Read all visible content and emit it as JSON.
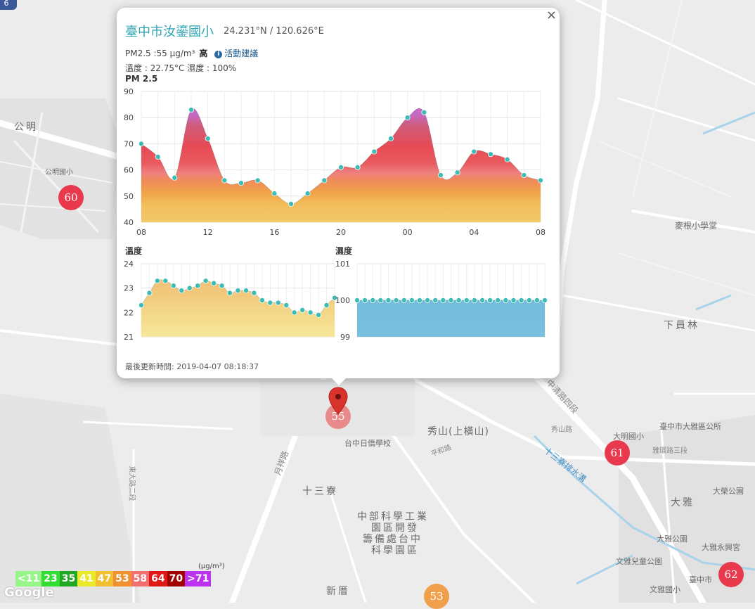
{
  "popup": {
    "station_name": "臺中市汝鎏國小",
    "coordinates": "24.231°N / 120.626°E",
    "pm25_text": "PM2.5 :55 μg/m³",
    "level": "高",
    "advice_link": "活動建議",
    "weather_text": "溫度 : 22.75°C  濕度 : 100%",
    "close_label": "×",
    "updated_text": "最後更新時間: 2019-04-07 08:18:37"
  },
  "chart_data": [
    {
      "type": "area",
      "title": "PM 2.5",
      "x": [
        "08",
        "09",
        "10",
        "11",
        "12",
        "13",
        "14",
        "15",
        "16",
        "17",
        "18",
        "19",
        "20",
        "21",
        "22",
        "23",
        "00",
        "01",
        "02",
        "03",
        "04",
        "05",
        "06",
        "07",
        "08"
      ],
      "xticks": [
        "08",
        "12",
        "16",
        "20",
        "00",
        "04",
        "08"
      ],
      "values": [
        70,
        65,
        57,
        83,
        72,
        56,
        55,
        56,
        51,
        47,
        51,
        56,
        61,
        61,
        67,
        72,
        80,
        82,
        58,
        59,
        67,
        66,
        64,
        58,
        56
      ],
      "ylim": [
        40,
        90
      ],
      "yticks": [
        40,
        50,
        60,
        70,
        80,
        90
      ],
      "grid": true
    },
    {
      "type": "area",
      "title": "溫度",
      "values": [
        22.3,
        22.8,
        23.3,
        23.3,
        23.1,
        22.9,
        23.0,
        23.1,
        23.3,
        23.2,
        23.1,
        22.8,
        22.9,
        22.9,
        22.8,
        22.5,
        22.4,
        22.4,
        22.3,
        22.0,
        22.1,
        22.0,
        21.9,
        22.3,
        22.6
      ],
      "ylim": [
        21,
        24
      ],
      "yticks": [
        21,
        22,
        23,
        24
      ],
      "grid": true
    },
    {
      "type": "area",
      "title": "濕度",
      "values": [
        100,
        100,
        100,
        100,
        100,
        100,
        100,
        100,
        100,
        100,
        100,
        100,
        100,
        100,
        100,
        100,
        100,
        100,
        100,
        100,
        100,
        100,
        100,
        100,
        100
      ],
      "ylim": [
        99,
        101
      ],
      "yticks": [
        99,
        100,
        101
      ],
      "grid": true
    }
  ],
  "map": {
    "labels": [
      "公明",
      "公明國小",
      "秀山(上橫山)",
      "台中日僑學校",
      "十三寮",
      "中部科學工業",
      "園區開發",
      "籌備處台中",
      "科學園區",
      "新厝",
      "下員林",
      "麥根小學堂",
      "大明國小",
      "臺中市大雅區公所",
      "大雅",
      "大雅公園",
      "文雅兒童公園",
      "大雅永興宮",
      "大榮公園",
      "文雅國小",
      "臺中市"
    ],
    "roads": [
      "中清路四段",
      "十三寮排水溝",
      "秀山路",
      "平和路",
      "雅環路三段",
      "月祥路",
      "東大路二段"
    ],
    "markers": [
      {
        "value": "60",
        "color": "#e8394d"
      },
      {
        "value": "55",
        "color": "#e98a8a"
      },
      {
        "value": "61",
        "color": "#e8394d"
      },
      {
        "value": "62",
        "color": "#e8394d"
      },
      {
        "value": "53",
        "color": "#f0a04a"
      }
    ],
    "corner_badge": "6"
  },
  "legend": {
    "unit": "(μg/m³)",
    "items": [
      {
        "label": "<11",
        "color": "#98f58a"
      },
      {
        "label": "23",
        "color": "#33dd33"
      },
      {
        "label": "35",
        "color": "#23a623"
      },
      {
        "label": "41",
        "color": "#eaea2a"
      },
      {
        "label": "47",
        "color": "#f0c030"
      },
      {
        "label": "53",
        "color": "#f09030"
      },
      {
        "label": "58",
        "color": "#f07070"
      },
      {
        "label": "64",
        "color": "#e01818"
      },
      {
        "label": "70",
        "color": "#a00000"
      },
      {
        "label": ">71",
        "color": "#bb33ee"
      }
    ]
  },
  "attribution": "Google"
}
